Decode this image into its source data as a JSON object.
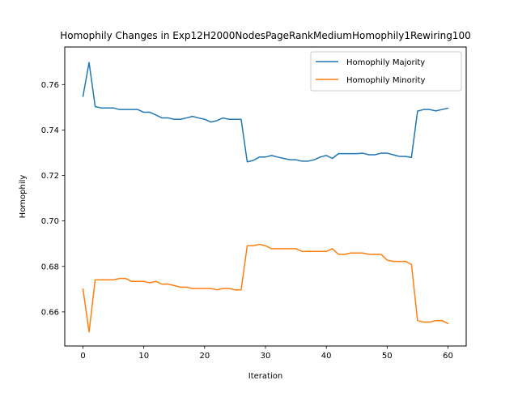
{
  "chart_data": {
    "type": "line",
    "title": "Homophily Changes in Exp12H2000NodesPageRankMediumHomophily1Rewiring100",
    "xlabel": "Iteration",
    "ylabel": "Homophily",
    "xlim": [
      -3,
      63
    ],
    "ylim": [
      0.645,
      0.7765
    ],
    "xticks": [
      0,
      10,
      20,
      30,
      40,
      50,
      60
    ],
    "yticks": [
      0.66,
      0.68,
      0.7,
      0.72,
      0.74,
      0.76
    ],
    "ytick_labels": [
      "0.66",
      "0.68",
      "0.70",
      "0.72",
      "0.74",
      "0.76"
    ],
    "grid": false,
    "legend": "top-right",
    "x": [
      0,
      1,
      2,
      3,
      4,
      5,
      6,
      7,
      8,
      9,
      10,
      11,
      12,
      13,
      14,
      15,
      16,
      17,
      18,
      19,
      20,
      21,
      22,
      23,
      24,
      25,
      26,
      27,
      28,
      29,
      30,
      31,
      32,
      33,
      34,
      35,
      36,
      37,
      38,
      39,
      40,
      41,
      42,
      43,
      44,
      45,
      46,
      47,
      48,
      49,
      50,
      51,
      52,
      53,
      54,
      55,
      56,
      57,
      58,
      59,
      60
    ],
    "series": [
      {
        "name": "Homophily Majority",
        "color": "#1f77b4",
        "values": [
          0.7548,
          0.7697,
          0.7503,
          0.7497,
          0.7497,
          0.7497,
          0.749,
          0.749,
          0.749,
          0.749,
          0.7478,
          0.7478,
          0.7466,
          0.7453,
          0.7453,
          0.7447,
          0.7447,
          0.7453,
          0.746,
          0.7453,
          0.7447,
          0.7435,
          0.7441,
          0.7453,
          0.7447,
          0.7447,
          0.7447,
          0.726,
          0.7266,
          0.7281,
          0.7281,
          0.7288,
          0.7281,
          0.7275,
          0.7269,
          0.7269,
          0.7263,
          0.7263,
          0.7269,
          0.7281,
          0.7288,
          0.7275,
          0.7296,
          0.7296,
          0.7296,
          0.7296,
          0.7298,
          0.7291,
          0.7291,
          0.7298,
          0.7298,
          0.7291,
          0.7284,
          0.7284,
          0.7279,
          0.7483,
          0.749,
          0.749,
          0.7484,
          0.749,
          0.7496
        ]
      },
      {
        "name": "Homophily Minority",
        "color": "#ff7f0e",
        "values": [
          0.67,
          0.6512,
          0.6741,
          0.6741,
          0.6741,
          0.6741,
          0.6747,
          0.6747,
          0.6734,
          0.6734,
          0.6734,
          0.6728,
          0.6734,
          0.6722,
          0.6722,
          0.6716,
          0.6709,
          0.6709,
          0.6703,
          0.6703,
          0.6703,
          0.6703,
          0.6697,
          0.6703,
          0.6703,
          0.6697,
          0.6697,
          0.6891,
          0.6891,
          0.6897,
          0.6891,
          0.6878,
          0.6878,
          0.6878,
          0.6878,
          0.6878,
          0.6866,
          0.6866,
          0.6866,
          0.6866,
          0.6866,
          0.6878,
          0.6853,
          0.6853,
          0.6859,
          0.6859,
          0.6859,
          0.6853,
          0.6853,
          0.6853,
          0.6828,
          0.6822,
          0.6822,
          0.6822,
          0.6809,
          0.6562,
          0.6555,
          0.6555,
          0.6562,
          0.6562,
          0.6549
        ]
      }
    ]
  }
}
